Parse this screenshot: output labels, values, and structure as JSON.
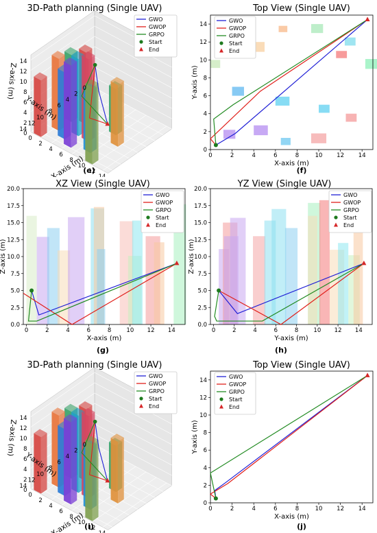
{
  "panels": {
    "e": {
      "title": "3D-Path planning (Single UAV)",
      "caption": "(e)"
    },
    "f": {
      "title": "Top View (Single UAV)",
      "caption": "(f)"
    },
    "g": {
      "title": "XZ View (Single UAV)",
      "caption": "(g)"
    },
    "h": {
      "title": "YZ View (Single UAV)",
      "caption": "(h)"
    },
    "i": {
      "title": "3D-Path planning (Single UAV)",
      "caption": "(i)"
    },
    "j": {
      "title": "Top View (Single UAV)",
      "caption": "(j)"
    }
  },
  "colors": {
    "GWO": "#1f1fd6",
    "GWOP": "#e0201b",
    "GRPO": "#228b22",
    "start": "#1e7a1e",
    "end": "#d62728"
  },
  "chart_data": [
    {
      "id": "e",
      "type": "scatter",
      "title": "3D-Path planning (Single UAV)",
      "xlabel": "X-axis (m)",
      "ylabel": "Y-axis (m)",
      "zlabel": "Z-axis (m)",
      "xticks": [
        "0",
        "2",
        "4",
        "6",
        "8",
        "10",
        "12",
        "14"
      ],
      "yticks": [
        "0",
        "2",
        "4",
        "6",
        "8",
        "10",
        "12",
        "14"
      ],
      "zticks": [
        "0",
        "2",
        "4",
        "6",
        "8",
        "10",
        "12",
        "14"
      ],
      "legend": [
        "GWO",
        "GWOP",
        "GRPO",
        "Start",
        "End"
      ],
      "legend_position": "top-right",
      "start": [
        0.5,
        0.5,
        5
      ],
      "end": [
        14.5,
        14.5,
        9
      ],
      "obstacles": [
        {
          "x": 0.5,
          "y": 13.5,
          "h": 11,
          "color": "#d64541"
        },
        {
          "x": 1.5,
          "y": 10.5,
          "h": 14,
          "color": "#e8743b"
        },
        {
          "x": 3.5,
          "y": 11.5,
          "h": 13,
          "color": "#2b7bd6"
        },
        {
          "x": 5.5,
          "y": 12.5,
          "h": 16,
          "color": "#7b3fd6"
        },
        {
          "x": 1.5,
          "y": 7.5,
          "h": 13,
          "color": "#3aa36a"
        },
        {
          "x": 3.5,
          "y": 6.5,
          "h": 14,
          "color": "#d64541"
        },
        {
          "x": 4.5,
          "y": 9.5,
          "h": 15,
          "color": "#1fa0c8"
        },
        {
          "x": 6.5,
          "y": 9.5,
          "h": 16,
          "color": "#d64561"
        },
        {
          "x": 8.5,
          "y": 11.5,
          "h": 12,
          "color": "#1f8fd6"
        },
        {
          "x": 10.5,
          "y": 13.5,
          "h": 15,
          "color": "#7fa04f"
        },
        {
          "x": 8.5,
          "y": 5.5,
          "h": 9,
          "color": "#3aa36a"
        },
        {
          "x": 10.5,
          "y": 7.5,
          "h": 12,
          "color": "#e0903b"
        }
      ]
    },
    {
      "id": "f",
      "type": "line",
      "title": "Top View (Single UAV)",
      "xlabel": "X-axis (m)",
      "ylabel": "Y-axis (m)",
      "xlim": [
        0,
        15
      ],
      "ylim": [
        0,
        15
      ],
      "xticks": [
        0,
        2,
        4,
        6,
        8,
        10,
        12,
        14
      ],
      "yticks": [
        0,
        2,
        4,
        6,
        8,
        10,
        12,
        14
      ],
      "legend_position": "top-left",
      "series": [
        {
          "name": "GWO",
          "x": [
            0.5,
            2.3,
            14.5
          ],
          "y": [
            0.5,
            1.8,
            14.5
          ]
        },
        {
          "name": "GWOP",
          "x": [
            0.5,
            0,
            4.6,
            14.5
          ],
          "y": [
            0.5,
            1.2,
            6.5,
            14.5
          ]
        },
        {
          "name": "GRPO",
          "x": [
            0.5,
            0.3,
            2.1,
            14.5
          ],
          "y": [
            0.5,
            3.4,
            5.0,
            14.5
          ]
        }
      ],
      "start": [
        0.5,
        0.5
      ],
      "end": [
        14.5,
        14.5
      ],
      "obstacles": [
        {
          "x": 1.2,
          "y": 1.2,
          "w": 1.1,
          "h": 1.0,
          "color": "#b48cf0"
        },
        {
          "x": 4.0,
          "y": 1.6,
          "w": 1.3,
          "h": 1.1,
          "color": "#b48cf0"
        },
        {
          "x": 6.5,
          "y": 0.5,
          "w": 0.9,
          "h": 0.8,
          "color": "#6ec8f0"
        },
        {
          "x": 9.3,
          "y": 0.7,
          "w": 1.4,
          "h": 1.1,
          "color": "#f4a6a6"
        },
        {
          "x": 2.0,
          "y": 6.0,
          "w": 1.1,
          "h": 1.0,
          "color": "#5fb8f0"
        },
        {
          "x": 6.0,
          "y": 4.9,
          "w": 1.3,
          "h": 1.0,
          "color": "#5fd0f0"
        },
        {
          "x": 10.0,
          "y": 4.1,
          "w": 1.0,
          "h": 0.9,
          "color": "#5fd0f0"
        },
        {
          "x": 12.5,
          "y": 3.1,
          "w": 1.0,
          "h": 0.9,
          "color": "#f49a9a"
        },
        {
          "x": 3.9,
          "y": 10.9,
          "w": 1.1,
          "h": 1.1,
          "color": "#f8d0a0"
        },
        {
          "x": 0.0,
          "y": 9.1,
          "w": 0.9,
          "h": 0.9,
          "color": "#c8e8b8"
        },
        {
          "x": 6.3,
          "y": 13.1,
          "w": 0.8,
          "h": 0.7,
          "color": "#f8b888"
        },
        {
          "x": 9.3,
          "y": 13.0,
          "w": 1.1,
          "h": 1.0,
          "color": "#a8e8b8"
        },
        {
          "x": 11.6,
          "y": 10.2,
          "w": 1.0,
          "h": 0.8,
          "color": "#f47a7a"
        },
        {
          "x": 12.4,
          "y": 11.6,
          "w": 1.0,
          "h": 0.9,
          "color": "#7fdcec"
        },
        {
          "x": 14.3,
          "y": 9.0,
          "w": 1.1,
          "h": 1.1,
          "color": "#8ef0b8"
        }
      ]
    },
    {
      "id": "g",
      "type": "line",
      "title": "XZ View (Single UAV)",
      "xlabel": "X-axis (m)",
      "ylabel": "Z-axis (m)",
      "xlim": [
        -0.3,
        15.3
      ],
      "ylim": [
        0,
        20
      ],
      "xticks": [
        0,
        2,
        4,
        6,
        8,
        10,
        12,
        14
      ],
      "yticks": [
        0.0,
        2.5,
        5.0,
        7.5,
        10.0,
        12.5,
        15.0,
        17.5,
        20.0
      ],
      "legend_position": "top-right",
      "series": [
        {
          "name": "GWO",
          "x": [
            0.5,
            1.2,
            14.5
          ],
          "y": [
            5.0,
            1.4,
            9.0
          ]
        },
        {
          "name": "GWOP",
          "x": [
            -0.3,
            4.4,
            14.5
          ],
          "y": [
            4.6,
            0.0,
            9.0
          ]
        },
        {
          "name": "GRPO",
          "x": [
            0.5,
            0.2,
            1.0,
            14.5
          ],
          "y": [
            5.0,
            0.5,
            0.5,
            9.0
          ]
        }
      ],
      "start": [
        0.5,
        5.0
      ],
      "end": [
        14.5,
        9.0
      ],
      "obstacles": [
        {
          "x": 0.0,
          "w": 1.0,
          "h": 16.0,
          "color": "#d8ecc8"
        },
        {
          "x": 1.0,
          "w": 1.2,
          "h": 12.9,
          "color": "#c8a8f0"
        },
        {
          "x": 2.0,
          "w": 1.2,
          "h": 14.2,
          "color": "#8ed0f0"
        },
        {
          "x": 3.0,
          "w": 1.2,
          "h": 10.9,
          "color": "#f8dcb8"
        },
        {
          "x": 4.0,
          "w": 1.6,
          "h": 15.8,
          "color": "#c8a8f0"
        },
        {
          "x": 6.2,
          "w": 1.3,
          "h": 17.1,
          "color": "#8ee0f0"
        },
        {
          "x": 6.5,
          "w": 1.0,
          "h": 17.3,
          "color": "#f8c8a0"
        },
        {
          "x": 6.8,
          "w": 0.8,
          "h": 11.1,
          "color": "#8ed0f0"
        },
        {
          "x": 9.0,
          "w": 1.3,
          "h": 15.2,
          "color": "#f8c0b8"
        },
        {
          "x": 9.8,
          "w": 1.3,
          "h": 10.1,
          "color": "#c8f0c0"
        },
        {
          "x": 10.2,
          "w": 1.0,
          "h": 15.3,
          "color": "#8ee8f0"
        },
        {
          "x": 11.5,
          "w": 1.4,
          "h": 13.0,
          "color": "#f49a9a"
        },
        {
          "x": 12.3,
          "w": 1.0,
          "h": 12.1,
          "color": "#f8c8a0"
        },
        {
          "x": 14.2,
          "w": 1.2,
          "h": 17.7,
          "color": "#a8f0c0"
        }
      ]
    },
    {
      "id": "h",
      "type": "line",
      "title": "YZ View (Single UAV)",
      "xlabel": "Y-axis (m)",
      "ylabel": "Z-axis (m)",
      "xlim": [
        -0.3,
        15.3
      ],
      "ylim": [
        0,
        20
      ],
      "xticks": [
        0,
        2,
        4,
        6,
        8,
        10,
        12,
        14
      ],
      "yticks": [
        0.0,
        2.5,
        5.0,
        7.5,
        10.0,
        12.5,
        15.0,
        17.5,
        20.0
      ],
      "legend_position": "top-right",
      "series": [
        {
          "name": "GWO",
          "x": [
            0.5,
            2.3,
            14.5
          ],
          "y": [
            5.0,
            1.6,
            9.0
          ]
        },
        {
          "name": "GWOP",
          "x": [
            0.5,
            6.5,
            14.5
          ],
          "y": [
            5.0,
            0.0,
            9.0
          ]
        },
        {
          "name": "GRPO",
          "x": [
            0.5,
            0.1,
            0.3,
            4.7,
            14.5
          ],
          "y": [
            5.0,
            1.2,
            0.5,
            0.5,
            9.0
          ]
        }
      ],
      "start": [
        0.5,
        5.0
      ],
      "end": [
        14.5,
        9.0
      ],
      "obstacles": [
        {
          "x": 0.5,
          "w": 1.0,
          "h": 11.1,
          "color": "#c8a8f0"
        },
        {
          "x": 0.9,
          "w": 1.4,
          "h": 15.0,
          "color": "#f49a9a"
        },
        {
          "x": 1.0,
          "w": 1.4,
          "h": 13.0,
          "color": "#c8a8f0"
        },
        {
          "x": 1.6,
          "w": 1.5,
          "h": 15.7,
          "color": "#c8a8f0"
        },
        {
          "x": 3.8,
          "w": 1.2,
          "h": 13.0,
          "color": "#f4a6a6"
        },
        {
          "x": 4.9,
          "w": 1.1,
          "h": 15.3,
          "color": "#8ee0f0"
        },
        {
          "x": 5.6,
          "w": 1.4,
          "h": 17.0,
          "color": "#8ee0f0"
        },
        {
          "x": 6.9,
          "w": 1.2,
          "h": 14.2,
          "color": "#8ed0f0"
        },
        {
          "x": 9.1,
          "w": 1.2,
          "h": 17.9,
          "color": "#a8f0c0"
        },
        {
          "x": 9.1,
          "w": 0.9,
          "h": 16.0,
          "color": "#f8dcb8"
        },
        {
          "x": 10.2,
          "w": 1.0,
          "h": 18.3,
          "color": "#f47a7a"
        },
        {
          "x": 11.2,
          "w": 1.4,
          "h": 11.0,
          "color": "#f8dcb8"
        },
        {
          "x": 12.0,
          "w": 1.0,
          "h": 12.0,
          "color": "#8ee8f0"
        },
        {
          "x": 13.0,
          "w": 1.1,
          "h": 10.2,
          "color": "#c8f0c0"
        },
        {
          "x": 13.5,
          "w": 0.9,
          "h": 13.7,
          "color": "#f8c8a0"
        }
      ]
    },
    {
      "id": "i",
      "type": "scatter",
      "title": "3D-Path planning (Single UAV)",
      "xlabel": "X-axis (m)",
      "ylabel": "Y-axis (m)",
      "zlabel": "Z-axis (m)",
      "xticks": [
        "0",
        "2",
        "4",
        "6",
        "8",
        "10",
        "12",
        "14"
      ],
      "yticks": [
        "0",
        "2",
        "4",
        "6",
        "8",
        "10",
        "12",
        "14"
      ],
      "zticks": [
        "0",
        "2",
        "4",
        "6",
        "8",
        "10",
        "12",
        "14"
      ],
      "legend": [
        "GWO",
        "GWOP",
        "GRPO",
        "Start",
        "End"
      ],
      "legend_position": "top-right",
      "start": [
        0.5,
        0.5,
        5
      ],
      "end": [
        14.5,
        14.5,
        9
      ]
    },
    {
      "id": "j",
      "type": "line",
      "title": "Top View (Single UAV)",
      "xlabel": "X-axis (m)",
      "ylabel": "Y-axis (m)",
      "xlim": [
        0,
        15
      ],
      "ylim": [
        0,
        15
      ],
      "xticks": [
        0,
        2,
        4,
        6,
        8,
        10,
        12,
        14
      ],
      "yticks": [
        0,
        2,
        4,
        6,
        8,
        10,
        12,
        14
      ],
      "legend_position": "top-left",
      "series": [
        {
          "name": "GWO",
          "x": [
            0.5,
            0.4,
            1.4,
            14.5
          ],
          "y": [
            0.5,
            1.4,
            2.3,
            14.5
          ]
        },
        {
          "name": "GWOP",
          "x": [
            0.5,
            0.0,
            1.6,
            14.5
          ],
          "y": [
            0.5,
            1.0,
            2.2,
            14.5
          ]
        },
        {
          "name": "GRPO",
          "x": [
            0.5,
            0.0,
            14.5
          ],
          "y": [
            0.5,
            3.4,
            14.5
          ]
        }
      ],
      "start": [
        0.5,
        0.5
      ],
      "end": [
        14.5,
        14.5
      ]
    }
  ]
}
